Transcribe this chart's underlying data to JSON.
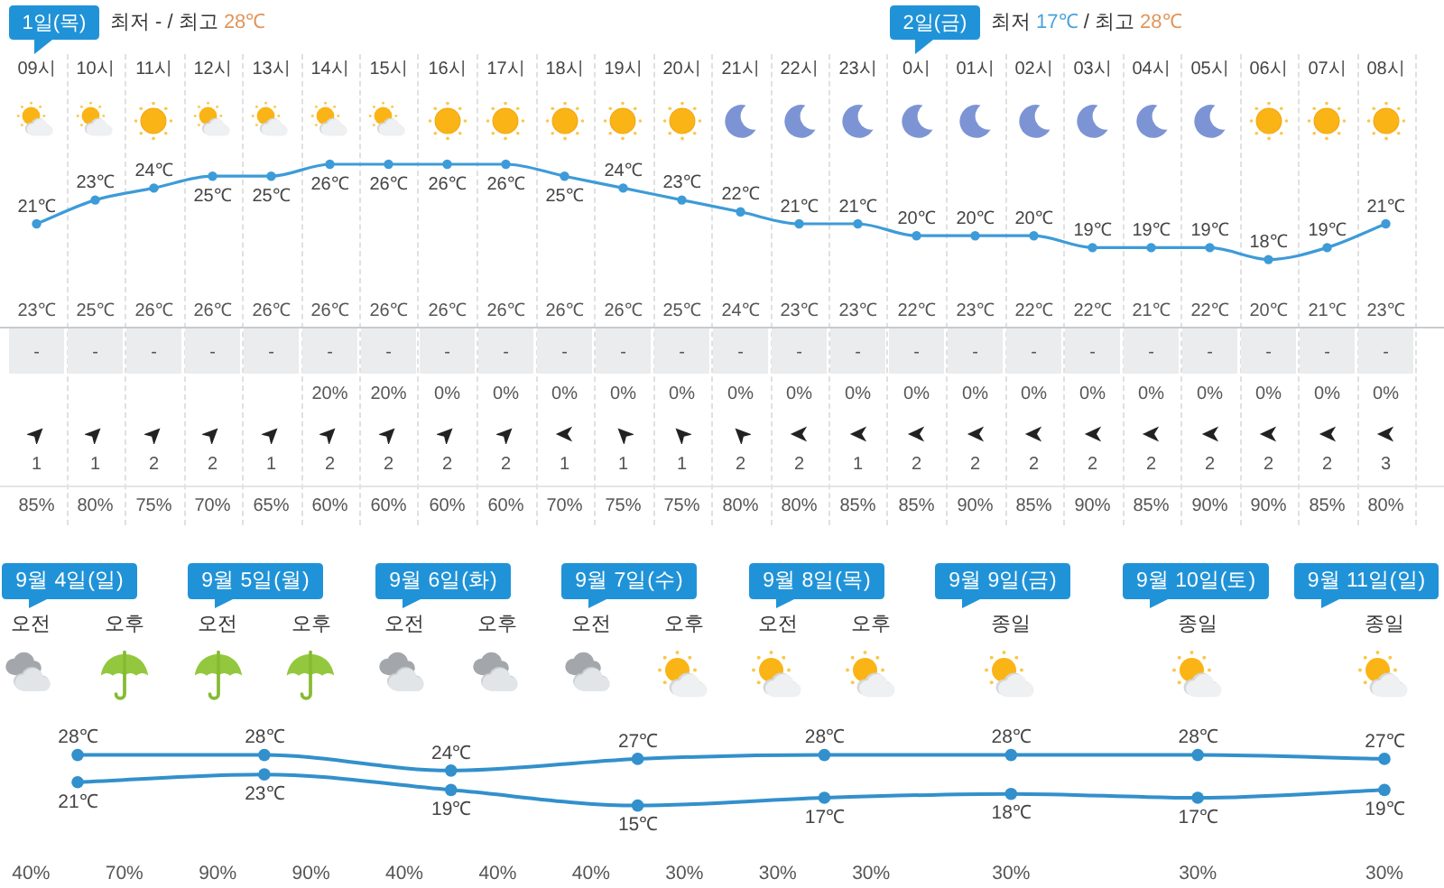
{
  "chart_data": [
    {
      "type": "line",
      "marker": "circle",
      "categories": [
        "09시",
        "10시",
        "11시",
        "12시",
        "13시",
        "14시",
        "15시",
        "16시",
        "17시",
        "18시",
        "19시",
        "20시",
        "21시",
        "22시",
        "23시",
        "0시",
        "01시",
        "02시",
        "03시",
        "04시",
        "05시",
        "06시",
        "07시",
        "08시"
      ],
      "annotations": [
        "1일(목)",
        "최저 - / 최고 28℃",
        "2일(금)",
        "최저 17℃ / 최고 28℃",
        "23℃",
        "25℃",
        "26℃",
        "26℃",
        "26℃",
        "26℃",
        "26℃",
        "26℃",
        "26℃",
        "26℃",
        "26℃",
        "25℃",
        "24℃",
        "23℃",
        "23℃",
        "22℃",
        "23℃",
        "22℃",
        "22℃",
        "21℃",
        "22℃",
        "20℃",
        "21℃",
        "23℃",
        "-",
        "-",
        "-",
        "-",
        "-",
        "-",
        "-",
        "-",
        "-",
        "-",
        "-",
        "-",
        "-",
        "-",
        "-",
        "-",
        "-",
        "-",
        "-",
        "-",
        "-",
        "-",
        "-",
        "-",
        "20%",
        "20%",
        "0%",
        "0%",
        "0%",
        "0%",
        "0%",
        "0%",
        "0%",
        "0%",
        "0%",
        "0%",
        "0%",
        "0%",
        "0%",
        "0%",
        "0%",
        "0%",
        "0%",
        "1",
        "1",
        "2",
        "2",
        "1",
        "2",
        "2",
        "2",
        "2",
        "1",
        "1",
        "1",
        "2",
        "2",
        "1",
        "2",
        "2",
        "2",
        "2",
        "2",
        "2",
        "2",
        "2",
        "3",
        "85%",
        "80%",
        "75%",
        "70%",
        "65%",
        "60%",
        "60%",
        "60%",
        "60%",
        "70%",
        "75%",
        "75%",
        "80%",
        "80%",
        "85%",
        "85%",
        "90%",
        "85%",
        "90%",
        "85%",
        "90%",
        "90%",
        "85%",
        "80%"
      ],
      "series": [
        {
          "color": "#3d9bd8",
          "values": [
            21,
            23,
            24,
            25,
            25,
            26,
            26,
            26,
            26,
            25,
            24,
            23,
            22,
            21,
            21,
            20,
            20,
            20,
            19,
            19,
            19,
            18,
            19,
            21
          ],
          "value_labels": [
            "21℃",
            "23℃",
            "24℃",
            "25℃",
            "25℃",
            "26℃",
            "26℃",
            "26℃",
            "26℃",
            "25℃",
            "24℃",
            "23℃",
            "22℃",
            "21℃",
            "21℃",
            "20℃",
            "20℃",
            "20℃",
            "19℃",
            "19℃",
            "19℃",
            "18℃",
            "19℃",
            "21℃"
          ]
        }
      ]
    },
    {
      "type": "line",
      "marker": "circle",
      "categories": [
        "9월 4일(일)",
        "9월 5일(월)",
        "9월 6일(화)",
        "9월 7일(수)",
        "9월 8일(목)",
        "9월 9일(금)",
        "9월 10일(토)",
        "9월 11일(일)"
      ],
      "annotations": [
        "오전",
        "오후",
        "오전",
        "오후",
        "오전",
        "오후",
        "오전",
        "오후",
        "오전",
        "오후",
        "종일",
        "종일",
        "종일",
        "40%",
        "70%",
        "90%",
        "90%",
        "40%",
        "40%",
        "40%",
        "30%",
        "30%",
        "30%",
        "30%",
        "30%",
        "30%"
      ],
      "series": [
        {
          "color": "#3290cc",
          "values": [
            28,
            28,
            24,
            27,
            28,
            28,
            28,
            27
          ],
          "value_labels": [
            "28℃",
            "28℃",
            "24℃",
            "27℃",
            "28℃",
            "28℃",
            "28℃",
            "27℃"
          ]
        },
        {
          "color": "#3290cc",
          "values": [
            21,
            23,
            19,
            15,
            17,
            18,
            17,
            19
          ],
          "value_labels": [
            "21℃",
            "23℃",
            "19℃",
            "15℃",
            "17℃",
            "18℃",
            "17℃",
            "19℃"
          ]
        }
      ]
    }
  ]
}
